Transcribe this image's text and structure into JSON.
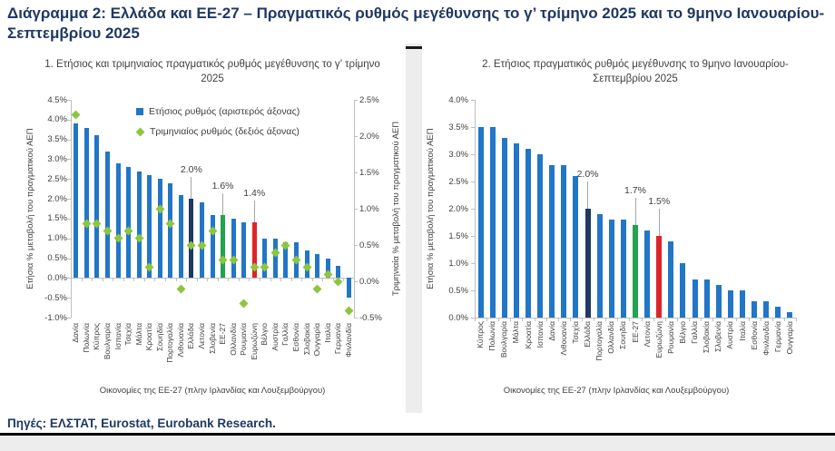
{
  "figure": {
    "title": "Διάγραμμα 2: Ελλάδα και ΕΕ-27 – Πραγματικός ρυθμός μεγέθυνσης το γ’ τρίμηνο 2025 και το 9μηνο Ιανουαρίου-Σεπτεμβρίου 2025",
    "source_note": "Πηγές: ΕΛΣΤΑΤ, Eurostat, Eurobank Research."
  },
  "colors": {
    "bar_blue": "#2176C7",
    "greece_navy": "#1F3864",
    "eu27_green": "#22A34F",
    "eurozone_red": "#DD2428",
    "diamond_green": "#8CC63F",
    "title_navy": "#1F3864",
    "chart_text_gray": "#404040",
    "axis_line_gray": "#BFBFBF",
    "page_bg_gray": "#EDEDEE"
  },
  "chart_data": [
    {
      "type": "bar",
      "title": "1. Ετήσιος και τριμηνιαίος πραγματικός ρυθμός μεγέθυνσης το γ’ τρίμηνο 2025",
      "categories": [
        "Δανία",
        "Πολωνία",
        "Κύπρος",
        "Βουλγαρία",
        "Ισπανία",
        "Τσεχία",
        "Μάλτα",
        "Κροατία",
        "Σουηδία",
        "Πορτογαλία",
        "Λιθουανία",
        "Ελλάδα",
        "Λετονία",
        "Σλοβενία",
        "ΕΕ-27",
        "Ολλανδία",
        "Ρουμανία",
        "Ευρωζώνη",
        "Βέλγιο",
        "Αυστρία",
        "Γαλλία",
        "Εσθονία",
        "Σλοβακία",
        "Ουγγαρία",
        "Ιταλία",
        "Γερμανία",
        "Φινλανδία"
      ],
      "series": [
        {
          "name": "Ετήσιος ρυθμός (αριστερός άξονας)",
          "type": "bar",
          "axis": "left",
          "values": [
            3.9,
            3.8,
            3.6,
            3.2,
            2.9,
            2.8,
            2.7,
            2.6,
            2.5,
            2.4,
            2.1,
            2.0,
            1.9,
            1.6,
            1.6,
            1.5,
            1.4,
            1.4,
            1.0,
            1.0,
            0.9,
            0.9,
            0.7,
            0.6,
            0.5,
            0.3,
            -0.5
          ]
        },
        {
          "name": "Τριμηνιαίος ρυθμός (δεξιός άξονας)",
          "type": "diamond",
          "axis": "right",
          "values": [
            2.3,
            0.8,
            0.8,
            0.7,
            0.6,
            0.7,
            0.6,
            0.2,
            1.0,
            0.8,
            -0.1,
            0.5,
            0.5,
            0.7,
            0.3,
            0.3,
            -0.3,
            0.2,
            0.2,
            0.4,
            0.5,
            0.3,
            0.2,
            -0.1,
            0.1,
            0.0,
            -0.4
          ]
        }
      ],
      "ylabel_left": "Ετήσια % μεταβολή του πραγματικού ΑΕΠ",
      "ylabel_right": "Τριμηνιαία % μεταβολή του πραγματικού ΑΕΠ",
      "ylim_left": [
        -1.0,
        4.5
      ],
      "ylim_right": [
        -0.5,
        2.5
      ],
      "tick_step": 0.5,
      "grid": false,
      "legend_position": "inside-top",
      "xlabel": "Οικονομίες της ΕΕ-27 (πλην Ιρλανδίας και Λουξεμβούργου)",
      "annotations": [
        {
          "category": "Ελλάδα",
          "label": "2.0%",
          "color": "#1F3864"
        },
        {
          "category": "ΕΕ-27",
          "label": "1.6%",
          "color": "#22A34F"
        },
        {
          "category": "Ευρωζώνη",
          "label": "1.4%",
          "color": "#DD2428"
        }
      ]
    },
    {
      "type": "bar",
      "title": "2. Ετήσιος πραγματικός ρυθμός μεγέθυνσης το 9μηνο Ιανουαρίου-Σεπτεμβρίου 2025",
      "categories": [
        "Κύπρος",
        "Πολωνία",
        "Βουλγαρία",
        "Μάλτα",
        "Κροατία",
        "Ισπανία",
        "Δανία",
        "Λιθουανία",
        "Τσεχία",
        "Ελλάδα",
        "Πορτογαλία",
        "Ολλανδία",
        "Σουηδία",
        "ΕΕ-27",
        "Λετονία",
        "Ευρωζώνη",
        "Ρουμανία",
        "Βέλγιο",
        "Γαλλία",
        "Σλοβακία",
        "Σλοβενία",
        "Αυστρία",
        "Ιταλία",
        "Εσθονία",
        "Φινλανδία",
        "Γερμανία",
        "Ουγγαρία"
      ],
      "series": [
        {
          "name": "Ετήσιος ρυθμός",
          "type": "bar",
          "axis": "left",
          "values": [
            3.5,
            3.5,
            3.3,
            3.2,
            3.1,
            3.0,
            2.8,
            2.8,
            2.6,
            2.0,
            1.9,
            1.8,
            1.8,
            1.7,
            1.6,
            1.5,
            1.4,
            1.0,
            0.7,
            0.7,
            0.6,
            0.5,
            0.5,
            0.3,
            0.3,
            0.2,
            0.1
          ]
        }
      ],
      "ylabel_left": "Ετήσια % μεταβολή του πραγματικού ΑΕΠ",
      "ylim_left": [
        0.0,
        4.0
      ],
      "tick_step": 0.5,
      "grid": false,
      "xlabel": "Οικονομίες της ΕΕ-27 (πλην Ιρλανδίας και Λουξεμβούργου)",
      "annotations": [
        {
          "category": "Ελλάδα",
          "label": "2.0%",
          "color": "#1F3864"
        },
        {
          "category": "ΕΕ-27",
          "label": "1.7%",
          "color": "#22A34F"
        },
        {
          "category": "Ευρωζώνη",
          "label": "1.5%",
          "color": "#DD2428"
        }
      ]
    }
  ]
}
